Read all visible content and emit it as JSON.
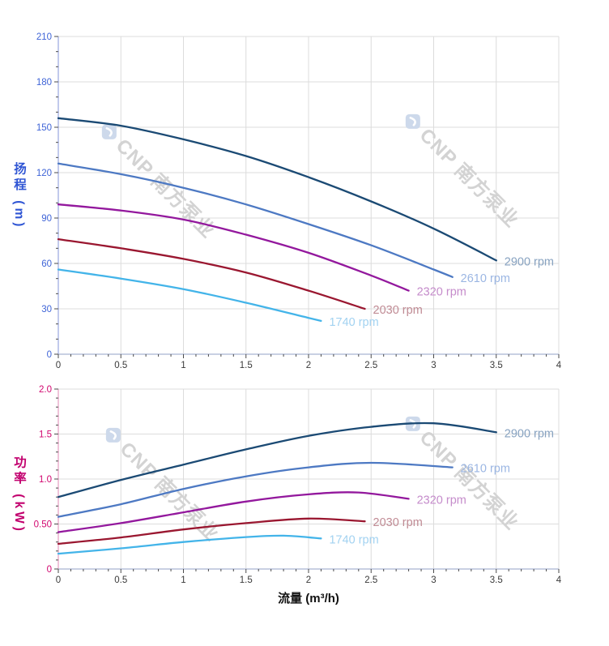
{
  "page": {
    "background": "#ffffff"
  },
  "watermark": {
    "text": "CNP 南方泵业",
    "color": "#d3d3d3",
    "logo_color": "#cdd9eb"
  },
  "chart_data": [
    {
      "type": "line",
      "title": "",
      "ylabel": "扬程 (m)",
      "xlabel": "",
      "xlim": [
        0,
        4
      ],
      "ylim": [
        0,
        210
      ],
      "grid": "on",
      "legend_position": "curve-end-labels",
      "x_tick_values": [
        0,
        0.5,
        1,
        1.5,
        2,
        2.5,
        3,
        3.5,
        4
      ],
      "x_tick_labels": [
        "0",
        "0.5",
        "1",
        "1.5",
        "2",
        "2.5",
        "3",
        "3.5",
        "4"
      ],
      "x_minor_step": 0.1,
      "y_tick_values": [
        0,
        30,
        60,
        90,
        120,
        150,
        180,
        210
      ],
      "y_tick_labels": [
        "0",
        "30",
        "60",
        "90",
        "120",
        "150",
        "180",
        "210"
      ],
      "y_minor_step": 10,
      "axis": {
        "y_line": "#a9b4e4",
        "x_line": "#b7c0da",
        "tick": "#4a4a4a",
        "grid": "#dcdcdc",
        "y_tick_label_color": "#3f64d7",
        "x_tick_label_color": "#3a3a3a",
        "ylabel_color": "#2f55d4"
      },
      "series": [
        {
          "name": "2900 rpm",
          "color": "#1b4a74",
          "label_color": "#87a2c0",
          "points": [
            [
              0,
              156
            ],
            [
              0.5,
              151
            ],
            [
              1,
              142
            ],
            [
              1.5,
              131
            ],
            [
              2,
              117
            ],
            [
              2.5,
              101
            ],
            [
              3,
              83
            ],
            [
              3.5,
              62
            ]
          ]
        },
        {
          "name": "2610 rpm",
          "color": "#4d79c3",
          "label_color": "#9bb6e3",
          "points": [
            [
              0,
              126
            ],
            [
              0.5,
              119
            ],
            [
              1,
              110
            ],
            [
              1.5,
              99
            ],
            [
              2,
              86
            ],
            [
              2.5,
              72
            ],
            [
              3,
              56
            ],
            [
              3.15,
              51
            ]
          ]
        },
        {
          "name": "2320 rpm",
          "color": "#93189d",
          "label_color": "#c58ccb",
          "points": [
            [
              0,
              99
            ],
            [
              0.5,
              95
            ],
            [
              1,
              89
            ],
            [
              1.5,
              79
            ],
            [
              2,
              67
            ],
            [
              2.5,
              52
            ],
            [
              2.8,
              42
            ]
          ]
        },
        {
          "name": "2030 rpm",
          "color": "#9a1730",
          "label_color": "#c08b94",
          "points": [
            [
              0,
              76
            ],
            [
              0.5,
              70
            ],
            [
              1,
              63
            ],
            [
              1.5,
              54
            ],
            [
              2,
              42
            ],
            [
              2.45,
              30
            ]
          ]
        },
        {
          "name": "1740 rpm",
          "color": "#43b4e9",
          "label_color": "#a2d2f1",
          "points": [
            [
              0,
              56
            ],
            [
              0.5,
              50
            ],
            [
              1,
              43
            ],
            [
              1.5,
              34
            ],
            [
              2,
              24
            ],
            [
              2.1,
              22
            ]
          ]
        }
      ]
    },
    {
      "type": "line",
      "title": "",
      "ylabel": "功率 (kW)",
      "xlabel": "流量 (m³/h)",
      "xlim": [
        0,
        4
      ],
      "ylim": [
        0,
        2
      ],
      "grid": "on",
      "legend_position": "curve-end-labels",
      "x_tick_values": [
        0,
        0.5,
        1,
        1.5,
        2,
        2.5,
        3,
        3.5,
        4
      ],
      "x_tick_labels": [
        "0",
        "0.5",
        "1",
        "1.5",
        "2",
        "2.5",
        "3",
        "3.5",
        "4"
      ],
      "x_minor_step": 0.1,
      "y_tick_values": [
        0,
        0.5,
        1,
        1.5,
        2
      ],
      "y_tick_labels": [
        "0",
        "0.50",
        "1.0",
        "1.5",
        "2.0"
      ],
      "y_minor_step": 0.1,
      "axis": {
        "y_line": "#eaaacb",
        "x_line": "#b7c0da",
        "tick": "#4a4a4a",
        "grid": "#dcdcdc",
        "y_tick_label_color": "#d1066f",
        "x_tick_label_color": "#3a3a3a",
        "ylabel_color": "#c2006e",
        "xlabel_color": "#111111"
      },
      "series": [
        {
          "name": "2900 rpm",
          "color": "#1b4a74",
          "label_color": "#87a2c0",
          "points": [
            [
              0,
              0.8
            ],
            [
              0.5,
              0.99
            ],
            [
              1,
              1.16
            ],
            [
              1.5,
              1.33
            ],
            [
              2,
              1.48
            ],
            [
              2.5,
              1.58
            ],
            [
              3,
              1.62
            ],
            [
              3.5,
              1.52
            ]
          ]
        },
        {
          "name": "2610 rpm",
          "color": "#4d79c3",
          "label_color": "#9bb6e3",
          "points": [
            [
              0,
              0.58
            ],
            [
              0.5,
              0.72
            ],
            [
              1,
              0.89
            ],
            [
              1.5,
              1.03
            ],
            [
              2,
              1.13
            ],
            [
              2.5,
              1.18
            ],
            [
              3.15,
              1.13
            ]
          ]
        },
        {
          "name": "2320 rpm",
          "color": "#93189d",
          "label_color": "#c58ccb",
          "points": [
            [
              0,
              0.41
            ],
            [
              0.5,
              0.51
            ],
            [
              1,
              0.63
            ],
            [
              1.5,
              0.75
            ],
            [
              2,
              0.83
            ],
            [
              2.4,
              0.85
            ],
            [
              2.8,
              0.78
            ]
          ]
        },
        {
          "name": "2030 rpm",
          "color": "#9a1730",
          "label_color": "#c08b94",
          "points": [
            [
              0,
              0.28
            ],
            [
              0.5,
              0.35
            ],
            [
              1,
              0.44
            ],
            [
              1.5,
              0.51
            ],
            [
              2,
              0.56
            ],
            [
              2.45,
              0.53
            ]
          ]
        },
        {
          "name": "1740 rpm",
          "color": "#43b4e9",
          "label_color": "#a2d2f1",
          "points": [
            [
              0,
              0.17
            ],
            [
              0.5,
              0.23
            ],
            [
              1,
              0.3
            ],
            [
              1.5,
              0.355
            ],
            [
              1.8,
              0.37
            ],
            [
              2.1,
              0.34
            ]
          ]
        }
      ]
    }
  ]
}
